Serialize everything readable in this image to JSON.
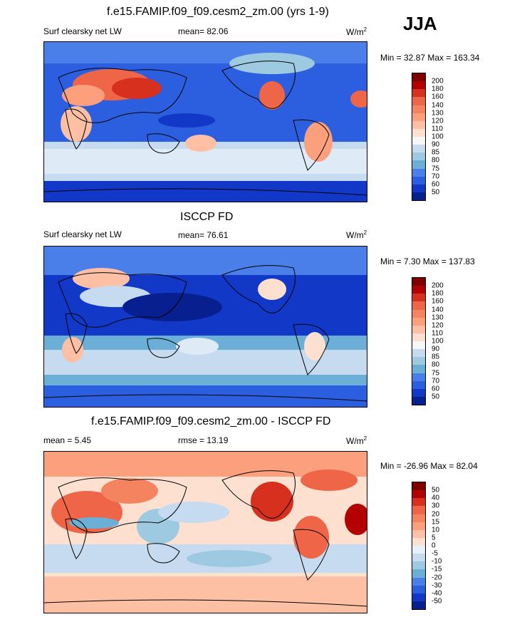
{
  "season": "JJA",
  "panels": [
    {
      "title": "f.e15.FAMIP.f09_f09.cesm2_zm.00 (yrs 1-9)",
      "left": "Surf clearsky net LW",
      "center": "mean=  82.06",
      "units": "W/m",
      "units_sup": "2",
      "minmax": "Min =  32.87 Max = 163.34",
      "scale": "abs"
    },
    {
      "title": "ISCCP FD",
      "left": "Surf clearsky net LW",
      "center": "mean=  76.61",
      "units": "W/m",
      "units_sup": "2",
      "minmax": "Min =  7.30 Max = 137.83",
      "scale": "abs"
    },
    {
      "title": "f.e15.FAMIP.f09_f09.cesm2_zm.00 - ISCCP FD",
      "left": "mean =  5.45",
      "center": "rmse =  13.19",
      "units": "W/m",
      "units_sup": "2",
      "minmax": "Min = -26.96 Max =  82.04",
      "scale": "diff"
    }
  ],
  "colorbars": {
    "abs": {
      "labels": [
        "200",
        "180",
        "160",
        "140",
        "130",
        "120",
        "110",
        "100",
        "90",
        "85",
        "80",
        "75",
        "70",
        "60",
        "50"
      ],
      "colors": [
        "#7f0000",
        "#b30000",
        "#d7301f",
        "#ef6548",
        "#f4845f",
        "#fc9f7c",
        "#fdc0a4",
        "#fde0d0",
        "#f7f7f7",
        "#c6dbef",
        "#9ecae1",
        "#6baed6",
        "#4a7ee8",
        "#2c5fe0",
        "#1238c8",
        "#08208f"
      ]
    },
    "diff": {
      "labels": [
        "50",
        "40",
        "30",
        "20",
        "15",
        "10",
        "5",
        "0",
        "-5",
        "-10",
        "-15",
        "-20",
        "-30",
        "-40",
        "-50"
      ],
      "colors": [
        "#7f0000",
        "#b30000",
        "#d7301f",
        "#ef6548",
        "#f4845f",
        "#fc9f7c",
        "#fdc0a4",
        "#fde0d0",
        "#e8f0fb",
        "#c6dbef",
        "#9ecae1",
        "#6baed6",
        "#4a7ee8",
        "#2c5fe0",
        "#1238c8",
        "#08208f"
      ]
    }
  }
}
